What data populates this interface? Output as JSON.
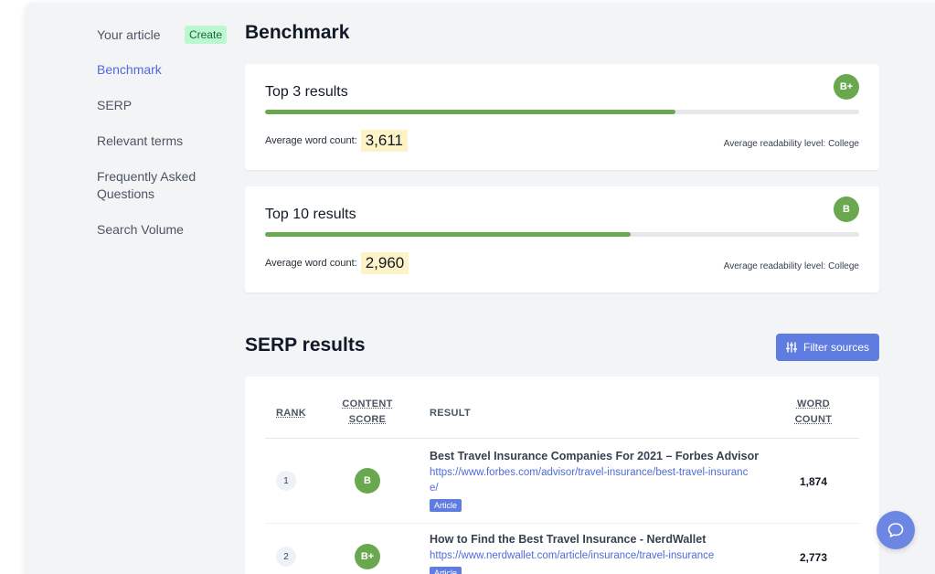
{
  "sidebar": {
    "your_article": "Your article",
    "create_label": "Create",
    "items": [
      {
        "label": "Benchmark"
      },
      {
        "label": "SERP"
      },
      {
        "label": "Relevant terms"
      },
      {
        "label": "Frequently Asked Questions"
      },
      {
        "label": "Search Volume"
      }
    ]
  },
  "benchmark": {
    "title": "Benchmark",
    "cards": [
      {
        "title": "Top 3 results",
        "grade": "B+",
        "progress": 0.69,
        "word_count_label": "Average word count:",
        "word_count": "3,611",
        "readability": "Average readability level: College"
      },
      {
        "title": "Top 10 results",
        "grade": "B",
        "progress": 0.615,
        "word_count_label": "Average word count:",
        "word_count": "2,960",
        "readability": "Average readability level: College"
      }
    ]
  },
  "serp": {
    "title": "SERP results",
    "filter_label": "Filter sources",
    "headers": {
      "rank": "RANK",
      "content_score_1": "CONTENT",
      "content_score_2": "SCORE",
      "result": "RESULT",
      "word_count_1": "WORD",
      "word_count_2": "COUNT"
    },
    "rows": [
      {
        "rank": "1",
        "grade": "B",
        "title": "Best Travel Insurance Companies For 2021 – Forbes Advisor",
        "url": "https://www.forbes.com/advisor/travel-insurance/best-travel-insurance/",
        "tag": "Article",
        "count": "1,874"
      },
      {
        "rank": "2",
        "grade": "B+",
        "title": "How to Find the Best Travel Insurance - NerdWallet",
        "url": "https://www.nerdwallet.com/article/insurance/travel-insurance",
        "tag": "Article",
        "count": "2,773"
      }
    ]
  },
  "colors": {
    "accent": "#5f7de0",
    "grade_green": "#6aa84f",
    "highlight": "#fef3c7"
  }
}
